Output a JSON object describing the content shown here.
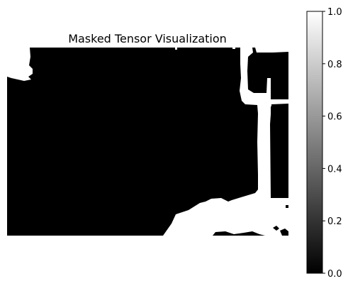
{
  "chart_data": [
    {
      "type": "heatmap",
      "title": "Masked Tensor Visualization",
      "colormap": "gray",
      "axes_visible": false,
      "mask_colors": {
        "background": "#000000",
        "mask": "#ffffff"
      },
      "white_regions_description": "binary mask image; white regions along the top-left edge, right side columns and bottom-right",
      "colorbar": {
        "range": [
          0.0,
          1.0
        ],
        "ticks": [
          0.0,
          0.2,
          0.4,
          0.6,
          0.8,
          1.0
        ],
        "tick_labels": [
          "0.0",
          "0.2",
          "0.4",
          "0.6",
          "0.8",
          "1.0"
        ],
        "placement": "right"
      }
    }
  ]
}
